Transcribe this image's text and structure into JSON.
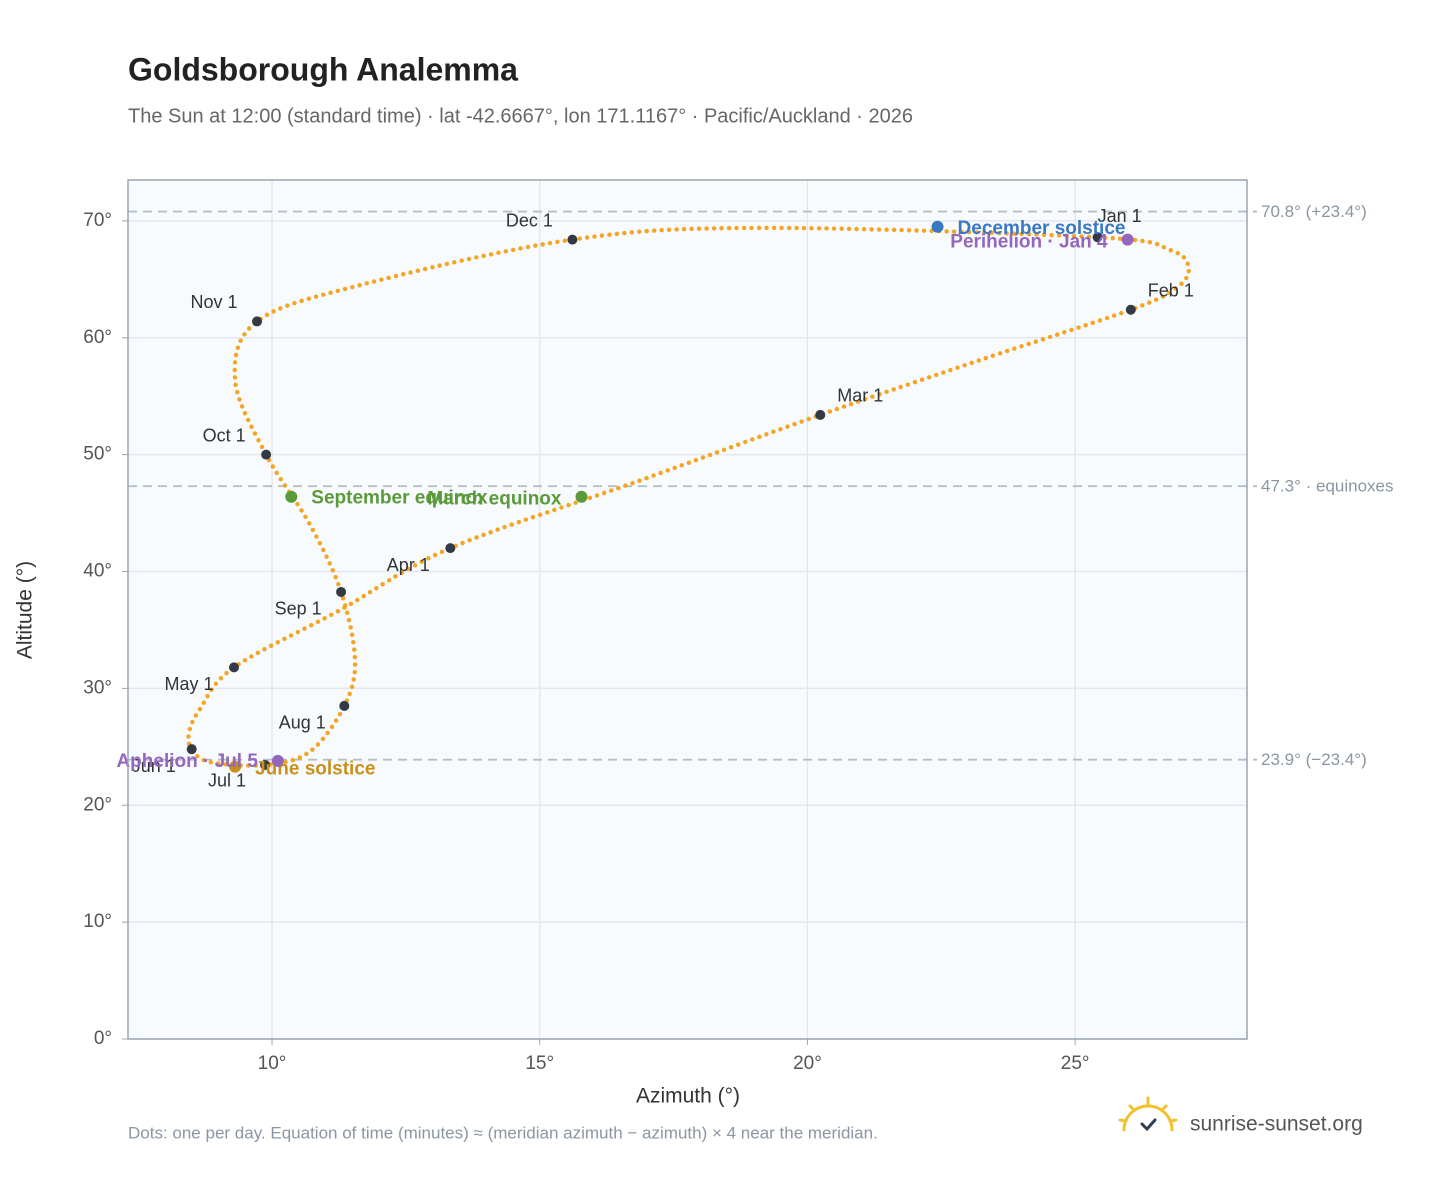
{
  "chart_data": {
    "type": "scatter",
    "title": "Goldsborough Analemma",
    "subtitle": "The Sun at 12:00 (standard time) · lat -42.6667°, lon 171.1167° · Pacific/Auckland · 2026",
    "xlabel": "Azimuth (°)",
    "ylabel": "Altitude (°)",
    "xlim": [
      7.31,
      28.21
    ],
    "ylim": [
      0,
      73.5
    ],
    "xticks": [
      {
        "value": 10,
        "label": "10°"
      },
      {
        "value": 15,
        "label": "15°"
      },
      {
        "value": 20,
        "label": "20°"
      },
      {
        "value": 25,
        "label": "25°"
      }
    ],
    "yticks": [
      {
        "value": 0,
        "label": "0°"
      },
      {
        "value": 10,
        "label": "10°"
      },
      {
        "value": 20,
        "label": "20°"
      },
      {
        "value": 30,
        "label": "30°"
      },
      {
        "value": 40,
        "label": "40°"
      },
      {
        "value": 50,
        "label": "50°"
      },
      {
        "value": 60,
        "label": "60°"
      },
      {
        "value": 70,
        "label": "70°"
      }
    ],
    "grid": true,
    "series": [
      {
        "color": "#f5a524",
        "x": [
          25.42,
          26.78,
          27.12,
          26.9,
          26.04,
          23.23,
          20.24,
          16.88,
          13.33,
          11.27,
          9.29,
          8.65,
          8.45,
          8.5,
          8.84,
          9.87,
          10.71,
          11.35,
          11.55,
          11.29,
          10.71,
          9.89,
          9.31,
          9.72,
          11.64,
          15.61,
          19.12
        ],
        "y": [
          68.6,
          67.5,
          66.0,
          64.3,
          62.4,
          58.1,
          53.4,
          47.8,
          42.0,
          36.7,
          31.8,
          28.2,
          26.2,
          24.8,
          23.7,
          23.45,
          24.6,
          28.5,
          32.4,
          38.25,
          44.0,
          50.0,
          56.4,
          61.4,
          64.5,
          68.4,
          69.4
        ]
      }
    ],
    "months": [
      {
        "label": "Jan 1",
        "x": 25.42,
        "y": 68.6
      },
      {
        "label": "Feb 1",
        "x": 26.04,
        "y": 62.4
      },
      {
        "label": "Mar 1",
        "x": 20.24,
        "y": 53.4
      },
      {
        "label": "Apr 1",
        "x": 13.33,
        "y": 42.0
      },
      {
        "label": "May 1",
        "x": 9.29,
        "y": 31.8
      },
      {
        "label": "Jun 1",
        "x": 8.5,
        "y": 24.8
      },
      {
        "label": "Jul 1",
        "x": 9.87,
        "y": 23.45
      },
      {
        "label": "Aug 1",
        "x": 11.35,
        "y": 28.5
      },
      {
        "label": "Sep 1",
        "x": 11.29,
        "y": 38.25
      },
      {
        "label": "Oct 1",
        "x": 9.89,
        "y": 50.0
      },
      {
        "label": "Nov 1",
        "x": 9.72,
        "y": 61.4
      },
      {
        "label": "Dec 1",
        "x": 15.61,
        "y": 68.4
      }
    ],
    "month_color": "#343a45",
    "events": [
      {
        "label": "December solstice",
        "x": 22.43,
        "y": 69.5,
        "color": "#3b78c3"
      },
      {
        "label": "Perihelion · Jan 4",
        "x": 25.98,
        "y": 68.4,
        "color": "#9467bd"
      },
      {
        "label": "March equinox",
        "x": 15.78,
        "y": 46.4,
        "color": "#5b9a3a"
      },
      {
        "label": "September equinox",
        "x": 10.36,
        "y": 46.4,
        "color": "#5b9a3a"
      },
      {
        "label": "June solstice",
        "x": 9.31,
        "y": 23.3,
        "color": "#c8901a"
      },
      {
        "label": "Aphelion · Jul 5",
        "x": 10.11,
        "y": 23.8,
        "color": "#9467bd"
      }
    ],
    "ref_lines": [
      {
        "value": 70.8,
        "label": "70.8° (+23.4°)"
      },
      {
        "value": 47.3,
        "label": "47.3° · equinoxes"
      },
      {
        "value": 23.9,
        "label": "23.9° (−23.4°)"
      }
    ],
    "footnote": "Dots: one per day. Equation of time (minutes) ≈ (meridian azimuth − azimuth) × 4 near the meridian.",
    "brand": "sunrise-sunset.org"
  }
}
